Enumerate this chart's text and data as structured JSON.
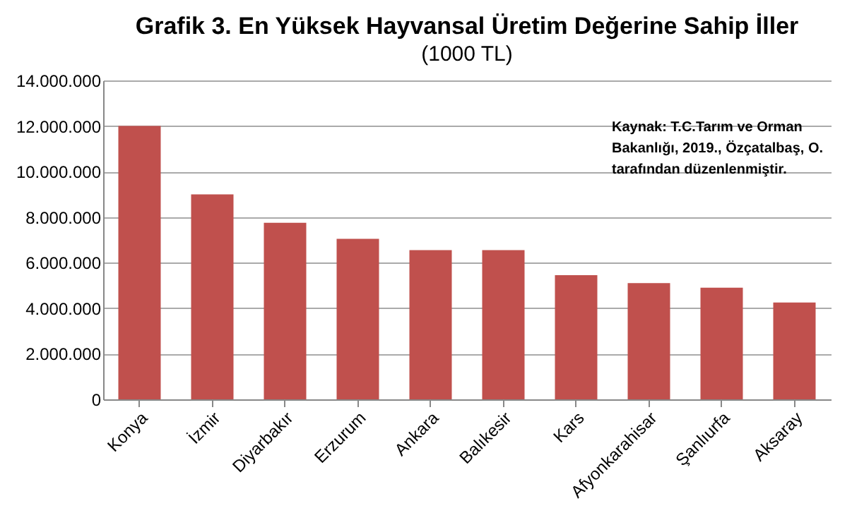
{
  "chart_data": {
    "type": "bar",
    "title": "Grafik 3. En Yüksek Hayvansal Üretim Değerine Sahip  İller",
    "subtitle": "(1000 TL)",
    "categories": [
      "Konya",
      "İzmir",
      "Diyarbakır",
      "Erzurum",
      "Ankara",
      "Balıkesir",
      "Kars",
      "Afyonkarahisar",
      "Şanlıurfa",
      "Aksaray"
    ],
    "values": [
      12000000,
      9000000,
      7750000,
      7050000,
      6550000,
      6550000,
      5450000,
      5100000,
      4900000,
      4250000
    ],
    "color": "#c0504d",
    "ylim": [
      0,
      14000000
    ],
    "yticks": [
      {
        "value": 0,
        "label": "0"
      },
      {
        "value": 2000000,
        "label": "2.000.000"
      },
      {
        "value": 4000000,
        "label": "4.000.000"
      },
      {
        "value": 6000000,
        "label": "6.000.000"
      },
      {
        "value": 8000000,
        "label": "8.000.000"
      },
      {
        "value": 10000000,
        "label": "10.000.000"
      },
      {
        "value": 12000000,
        "label": "12.000.000"
      },
      {
        "value": 14000000,
        "label": "14.000.000"
      }
    ],
    "grid": "y",
    "annotations": [
      "Kaynak: T.C.Tarım ve Orman Bakanlığı, 2019., Özçatalbaş, O. tarafından düzenlenmiştir."
    ]
  }
}
